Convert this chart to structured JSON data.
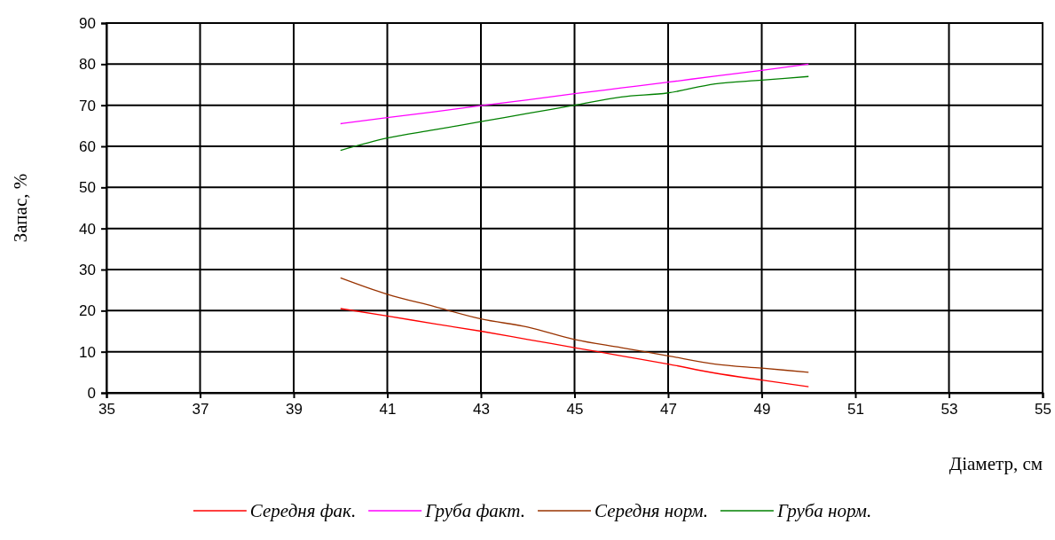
{
  "chart_data": {
    "type": "line",
    "xlabel": "Діаметр, см",
    "ylabel": "Запас, %",
    "x": [
      40,
      41,
      42,
      43,
      44,
      45,
      46,
      47,
      48,
      49,
      50
    ],
    "xlim": [
      35,
      55
    ],
    "xticks": [
      35,
      37,
      39,
      41,
      43,
      45,
      47,
      49,
      51,
      53,
      55
    ],
    "ylim": [
      0,
      90
    ],
    "yticks": [
      0,
      10,
      20,
      30,
      40,
      50,
      60,
      70,
      80,
      90
    ],
    "grid": true,
    "legend": "bottom",
    "marker": "none",
    "line_style": "solid",
    "series": [
      {
        "name": "Середня фак.",
        "color": "#ff0000",
        "values": [
          20.5,
          18.7,
          16.8,
          15,
          13,
          11,
          9,
          7,
          4.8,
          3.1,
          1.5
        ]
      },
      {
        "name": "Груба факт.",
        "color": "#ff00ff",
        "values": [
          65.5,
          67,
          68.4,
          69.9,
          71.3,
          72.8,
          74.2,
          75.6,
          77.1,
          78.5,
          80
        ]
      },
      {
        "name": "Середня норм.",
        "color": "#993300",
        "values": [
          28,
          24,
          21,
          18,
          16,
          13,
          11,
          9,
          7,
          6,
          5
        ]
      },
      {
        "name": "Груба норм.",
        "color": "#008000",
        "values": [
          59,
          62,
          64,
          66,
          68,
          70,
          72,
          73,
          75.2,
          76.1,
          77
        ]
      }
    ]
  }
}
